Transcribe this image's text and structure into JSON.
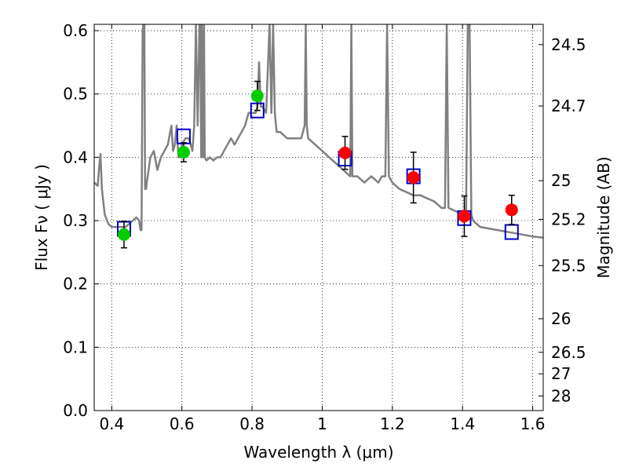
{
  "chart_data": {
    "type": "scatter",
    "xlabel": "Wavelength  λ (μm)",
    "ylabel": "Flux  Fν  ( μJy )",
    "y2label": "Magnitude (AB)",
    "xlim": [
      0.35,
      1.63
    ],
    "ylim": [
      0.0,
      0.61
    ],
    "grid": true,
    "x_ticks": [
      0.4,
      0.6,
      0.8,
      1.0,
      1.2,
      1.4,
      1.6
    ],
    "x_tick_labels": [
      "0.4",
      "0.6",
      "0.8",
      "1",
      "1.2",
      "1.4",
      "1.6"
    ],
    "y_ticks": [
      0.0,
      0.1,
      0.2,
      0.3,
      0.4,
      0.5,
      0.6
    ],
    "y_tick_labels": [
      "0.0",
      "0.1",
      "0.2",
      "0.3",
      "0.4",
      "0.5",
      "0.6"
    ],
    "y2_ticks": [
      {
        "flux": 0.578,
        "label": "24.5"
      },
      {
        "flux": 0.481,
        "label": "24.7"
      },
      {
        "flux": 0.363,
        "label": "25"
      },
      {
        "flux": 0.302,
        "label": "25.2"
      },
      {
        "flux": 0.229,
        "label": "25.5"
      },
      {
        "flux": 0.145,
        "label": "26"
      },
      {
        "flux": 0.092,
        "label": "26.5"
      },
      {
        "flux": 0.058,
        "label": "27"
      },
      {
        "flux": 0.023,
        "label": "28"
      }
    ],
    "series": [
      {
        "type": "line",
        "color": "#808080",
        "x": [
          0.35,
          0.36,
          0.365,
          0.368,
          0.372,
          0.38,
          0.39,
          0.4,
          0.41,
          0.42,
          0.43,
          0.44,
          0.45,
          0.46,
          0.47,
          0.478,
          0.482,
          0.485,
          0.488,
          0.49,
          0.493,
          0.495,
          0.498,
          0.5,
          0.505,
          0.51,
          0.52,
          0.53,
          0.54,
          0.55,
          0.56,
          0.57,
          0.575,
          0.58,
          0.585,
          0.59,
          0.595,
          0.6,
          0.61,
          0.62,
          0.63,
          0.635,
          0.64,
          0.645,
          0.65,
          0.652,
          0.655,
          0.657,
          0.66,
          0.663,
          0.665,
          0.67,
          0.68,
          0.69,
          0.7,
          0.71,
          0.72,
          0.73,
          0.74,
          0.75,
          0.76,
          0.77,
          0.78,
          0.79,
          0.8,
          0.81,
          0.815,
          0.82,
          0.825,
          0.83,
          0.84,
          0.85,
          0.855,
          0.86,
          0.865,
          0.87,
          0.88,
          0.9,
          0.92,
          0.94,
          0.95,
          0.953,
          0.956,
          0.96,
          0.98,
          1.0,
          1.02,
          1.04,
          1.06,
          1.08,
          1.083,
          1.086,
          1.09,
          1.1,
          1.12,
          1.14,
          1.16,
          1.17,
          1.18,
          1.185,
          1.19,
          1.2,
          1.22,
          1.24,
          1.26,
          1.28,
          1.3,
          1.32,
          1.34,
          1.35,
          1.355,
          1.36,
          1.4,
          1.41,
          1.415,
          1.42,
          1.425,
          1.43,
          1.45,
          1.5,
          1.55,
          1.6,
          1.63
        ],
        "y": [
          0.36,
          0.355,
          0.39,
          0.405,
          0.35,
          0.31,
          0.295,
          0.29,
          0.29,
          0.29,
          0.29,
          0.29,
          0.295,
          0.3,
          0.305,
          0.3,
          0.285,
          0.285,
          0.6,
          0.61,
          0.61,
          0.35,
          0.35,
          0.36,
          0.38,
          0.4,
          0.41,
          0.38,
          0.4,
          0.41,
          0.42,
          0.45,
          0.41,
          0.42,
          0.45,
          0.4,
          0.4,
          0.42,
          0.43,
          0.43,
          0.41,
          0.45,
          0.61,
          0.45,
          0.61,
          0.61,
          0.4,
          0.61,
          0.4,
          0.61,
          0.4,
          0.395,
          0.4,
          0.395,
          0.4,
          0.4,
          0.41,
          0.42,
          0.43,
          0.42,
          0.43,
          0.44,
          0.45,
          0.47,
          0.47,
          0.47,
          0.48,
          0.55,
          0.48,
          0.48,
          0.47,
          0.61,
          0.47,
          0.61,
          0.47,
          0.44,
          0.44,
          0.43,
          0.43,
          0.43,
          0.45,
          0.61,
          0.45,
          0.43,
          0.42,
          0.41,
          0.4,
          0.39,
          0.38,
          0.37,
          0.61,
          0.37,
          0.37,
          0.37,
          0.36,
          0.37,
          0.36,
          0.37,
          0.37,
          0.61,
          0.37,
          0.36,
          0.35,
          0.345,
          0.34,
          0.34,
          0.335,
          0.33,
          0.32,
          0.32,
          0.61,
          0.32,
          0.31,
          0.31,
          0.61,
          0.61,
          0.31,
          0.3,
          0.29,
          0.285,
          0.28,
          0.275,
          0.273
        ]
      },
      {
        "type": "markers-open-square",
        "color": "#0000cc",
        "x": [
          0.435,
          0.605,
          0.815,
          1.065,
          1.26,
          1.405,
          1.54
        ],
        "y": [
          0.287,
          0.433,
          0.474,
          0.398,
          0.37,
          0.304,
          0.282
        ]
      },
      {
        "type": "markers-filled-circle",
        "color": "#00cc00",
        "x": [
          0.435,
          0.605,
          0.815
        ],
        "y": [
          0.278,
          0.408,
          0.497
        ],
        "err": [
          0.021,
          0.015,
          0.023
        ]
      },
      {
        "type": "markers-filled-circle",
        "color": "#ff0000",
        "x": [
          1.065,
          1.26,
          1.405,
          1.54
        ],
        "y": [
          0.407,
          0.368,
          0.307,
          0.317
        ],
        "err": [
          0.026,
          0.04,
          0.032,
          0.023
        ]
      }
    ]
  }
}
